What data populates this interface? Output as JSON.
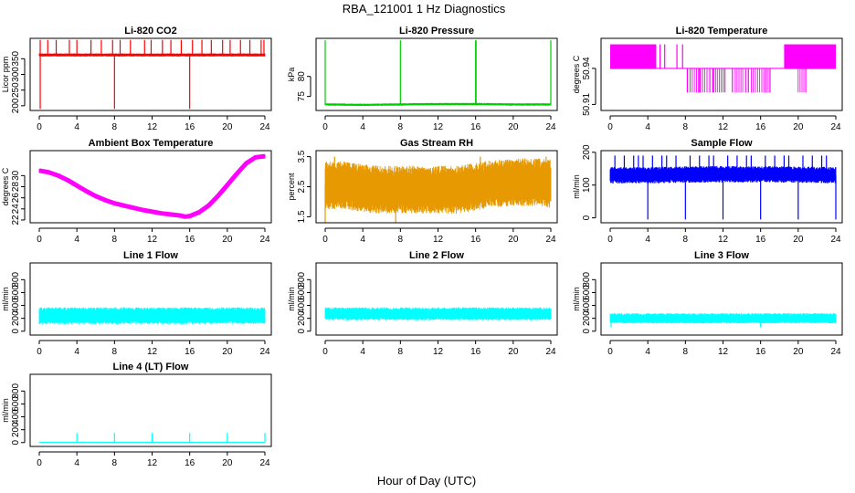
{
  "figure": {
    "title": "RBA_121001  1 Hz Diagnostics",
    "xlabel": "Hour of Day (UTC)"
  },
  "chart_data": [
    {
      "id": "co2",
      "type": "line",
      "title": "Li-820 CO2",
      "ylabel": "Licor ppm",
      "color": "#ff0000",
      "style": "noise",
      "xlim": [
        0,
        24
      ],
      "xticks": [
        0,
        4,
        8,
        12,
        16,
        20,
        24
      ],
      "ylim": [
        185,
        415
      ],
      "yticks": [
        200,
        250,
        300,
        350
      ],
      "x": [
        0,
        2,
        4,
        6,
        8,
        10,
        12,
        14,
        16,
        18,
        20,
        22,
        24
      ],
      "baseline": [
        362,
        362,
        362,
        362,
        362,
        362,
        362,
        362,
        362,
        362,
        362,
        362,
        362
      ],
      "band": 5,
      "spikes_up": [
        0.1,
        0.9,
        1.8,
        3.2,
        4.0,
        5.5,
        6.6,
        7.8,
        8.6,
        9.7,
        11.2,
        11.9,
        13.1,
        14.0,
        15.1,
        16.3,
        17.3,
        18.3,
        19.5,
        20.3,
        21.4,
        22.4,
        23.6,
        23.9
      ],
      "spike_up_to": 410,
      "spikes_down": [
        0.1,
        8.0,
        16.0
      ],
      "spike_down_to": 190
    },
    {
      "id": "pressure",
      "type": "line",
      "title": "Li-820 Pressure",
      "ylabel": "kPa",
      "color": "#00cc00",
      "style": "noise",
      "xlim": [
        0,
        24
      ],
      "xticks": [
        0,
        4,
        8,
        12,
        16,
        20,
        24
      ],
      "ylim": [
        71.5,
        89.5
      ],
      "yticks": [
        75,
        80
      ],
      "x": [
        0,
        4,
        8,
        12,
        16,
        20,
        24
      ],
      "baseline": [
        73,
        72.9,
        73,
        73.1,
        73.1,
        73.0,
        73
      ],
      "band": 0.3,
      "spikes_up": [
        0.0,
        8.0,
        16.0,
        16.05,
        24.0
      ],
      "spike_up_to": 89,
      "spikes_down": [],
      "spike_down_to": 73
    },
    {
      "id": "licortemp",
      "type": "step",
      "title": "Li-820 Temperature",
      "ylabel": "degrees C",
      "color": "#ff00ff",
      "style": "bands",
      "xlim": [
        0,
        24
      ],
      "xticks": [
        0,
        4,
        8,
        12,
        16,
        20,
        24
      ],
      "ylim": [
        50.905,
        50.965
      ],
      "yticks": [
        50.91,
        50.94
      ],
      "levels": [
        50.94,
        50.96,
        50.92
      ],
      "high_ranges": [
        [
          0.0,
          4.9
        ],
        [
          18.5,
          24.0
        ]
      ],
      "low_ranges": [
        [
          8.5,
          9.4
        ],
        [
          9.6,
          10.3
        ],
        [
          11.2,
          12.0
        ],
        [
          13.3,
          14.1
        ],
        [
          15.0,
          16.8
        ],
        [
          20.0,
          20.6
        ]
      ],
      "high_ticks": [
        5.3,
        5.8,
        7.1,
        7.7
      ],
      "low_ticks": [
        8.2,
        9.5,
        10.6,
        10.9,
        11.0,
        12.2,
        13.0,
        14.4,
        14.7,
        17.0,
        20.8
      ]
    },
    {
      "id": "ambient",
      "type": "line",
      "title": "Ambient Box Temperature",
      "ylabel": "degrees C",
      "color": "#ff00ff",
      "style": "thick",
      "xlim": [
        0,
        24
      ],
      "xticks": [
        0,
        4,
        8,
        12,
        16,
        20,
        24
      ],
      "ylim": [
        21.5,
        34.5
      ],
      "yticks": [
        22,
        24,
        26,
        28,
        30
      ],
      "x": [
        0,
        1,
        2,
        3,
        4,
        5,
        6,
        7,
        8,
        9,
        10,
        11,
        12,
        13,
        14,
        15,
        15.5,
        16,
        17,
        18,
        19,
        20,
        21,
        22,
        23,
        24
      ],
      "values": [
        30.9,
        30.6,
        30.0,
        29.2,
        28.2,
        27.2,
        26.3,
        25.6,
        25.0,
        24.6,
        24.2,
        23.8,
        23.5,
        23.2,
        23.0,
        22.8,
        22.6,
        22.7,
        23.4,
        24.6,
        26.3,
        28.3,
        30.3,
        32.2,
        33.3,
        33.5
      ],
      "band": 0.35
    },
    {
      "id": "rh",
      "type": "line",
      "title": "Gas Stream RH",
      "ylabel": "percent",
      "color": "#e69900",
      "style": "noise",
      "xlim": [
        0,
        24
      ],
      "xticks": [
        0,
        4,
        8,
        12,
        16,
        20,
        24
      ],
      "ylim": [
        1.3,
        3.7
      ],
      "yticks": [
        1.5,
        2.5,
        3.5
      ],
      "x": [
        0,
        2,
        4,
        6,
        8,
        10,
        12,
        14,
        16,
        18,
        20,
        22,
        24
      ],
      "baseline": [
        2.55,
        2.55,
        2.45,
        2.4,
        2.4,
        2.4,
        2.4,
        2.4,
        2.5,
        2.6,
        2.65,
        2.65,
        2.6
      ],
      "band": 0.8,
      "spikes_up": [
        1.0,
        16.5,
        23.5
      ],
      "spike_up_to": 3.5,
      "spikes_down": [
        7.5,
        0.0
      ],
      "spike_down_to": 1.3
    },
    {
      "id": "sampleflow",
      "type": "line",
      "title": "Sample Flow",
      "ylabel": "ml/min",
      "color": "#0000ff",
      "style": "noise",
      "xlim": [
        0,
        24
      ],
      "xticks": [
        0,
        4,
        8,
        12,
        16,
        20,
        24
      ],
      "ylim": [
        -15,
        205
      ],
      "yticks": [
        0,
        100,
        200
      ],
      "x": [
        0,
        4,
        8,
        12,
        16,
        20,
        24
      ],
      "baseline": [
        130,
        130,
        132,
        133,
        133,
        132,
        130
      ],
      "band": 25,
      "spikes_up": [
        0.5,
        1.5,
        2.5,
        3.0,
        3.5,
        4.5,
        5.5,
        6.0,
        7.0,
        8.5,
        9.5,
        10.5,
        11.0,
        12.5,
        13.5,
        14.5,
        15.0,
        16.5,
        17.5,
        18.5,
        19.0,
        20.5,
        21.5,
        22.5,
        23.0
      ],
      "spike_up_to": 190,
      "spikes_down": [
        4.0,
        8.0,
        12.0,
        16.0,
        20.0,
        24.0
      ],
      "spike_down_to": -5
    },
    {
      "id": "line1",
      "type": "line",
      "title": "Line 1 Flow",
      "ylabel": "ml/min",
      "color": "#00ffff",
      "style": "noise",
      "xlim": [
        0,
        24
      ],
      "xticks": [
        0,
        4,
        8,
        12,
        16,
        20,
        24
      ],
      "ylim": [
        -60,
        1060
      ],
      "yticks": [
        0,
        200,
        400,
        600,
        800
      ],
      "x": [
        0,
        24
      ],
      "baseline": [
        240,
        240
      ],
      "band": 130,
      "spikes_up": [],
      "spike_up_to": 0,
      "spikes_down": [],
      "spike_down_to": 0
    },
    {
      "id": "line2",
      "type": "line",
      "title": "Line 2 Flow",
      "ylabel": "ml/min",
      "color": "#00ffff",
      "style": "noise",
      "xlim": [
        0,
        24
      ],
      "xticks": [
        0,
        4,
        8,
        12,
        16,
        20,
        24
      ],
      "ylim": [
        -60,
        1060
      ],
      "yticks": [
        0,
        200,
        400,
        600,
        800
      ],
      "x": [
        0,
        24
      ],
      "baseline": [
        270,
        270
      ],
      "band": 100,
      "spikes_up": [],
      "spike_up_to": 0,
      "spikes_down": [],
      "spike_down_to": 0
    },
    {
      "id": "line3",
      "type": "line",
      "title": "Line 3 Flow",
      "ylabel": "ml/min",
      "color": "#00ffff",
      "style": "noise",
      "xlim": [
        0,
        24
      ],
      "xticks": [
        0,
        4,
        8,
        12,
        16,
        20,
        24
      ],
      "ylim": [
        -60,
        1060
      ],
      "yticks": [
        0,
        200,
        400,
        600,
        800
      ],
      "x": [
        0,
        24
      ],
      "baseline": [
        200,
        200
      ],
      "band": 80,
      "spikes_up": [],
      "spike_up_to": 0,
      "spikes_down": [
        0.1,
        16.0
      ],
      "spike_down_to": 60
    },
    {
      "id": "line4",
      "type": "line",
      "title": "Line 4 (LT) Flow",
      "ylabel": "ml/min",
      "color": "#00ffff",
      "style": "noise",
      "xlim": [
        0,
        24
      ],
      "xticks": [
        0,
        4,
        8,
        12,
        16,
        20,
        24
      ],
      "ylim": [
        -60,
        1060
      ],
      "yticks": [
        0,
        200,
        400,
        600,
        800
      ],
      "x": [
        0,
        24
      ],
      "baseline": [
        5,
        5
      ],
      "band": 4,
      "spikes_up": [
        4.0,
        8.0,
        12.0,
        16.0,
        20.0,
        24.0
      ],
      "spike_up_to": 150,
      "spikes_down": [],
      "spike_down_to": 0
    }
  ]
}
